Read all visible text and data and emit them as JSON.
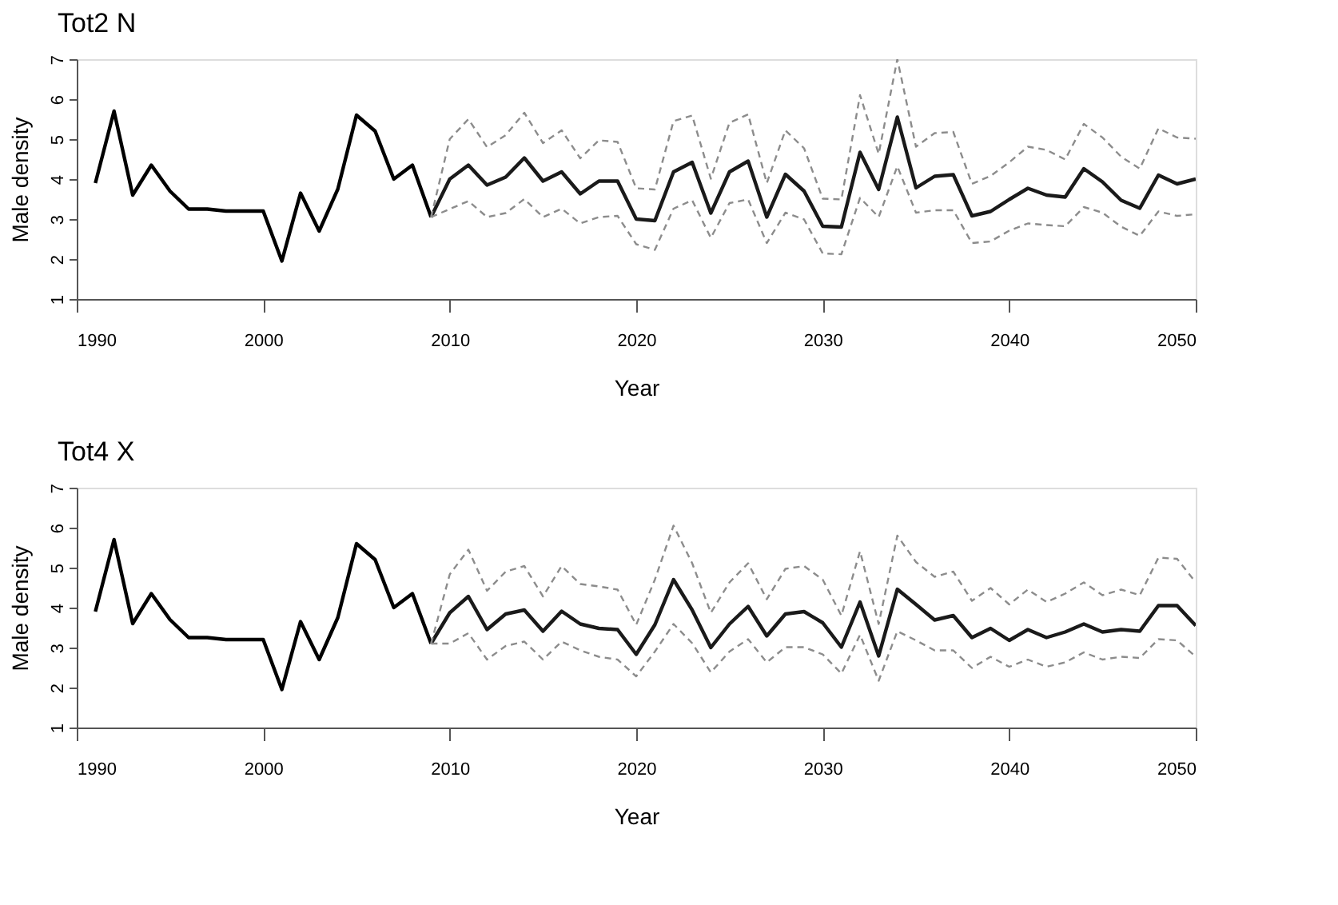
{
  "chart_data": [
    {
      "type": "line",
      "title": "Tot2 N",
      "xlabel": "Year",
      "ylabel": "Male density",
      "xlim": [
        1990,
        2050
      ],
      "xticks": [
        1990,
        2000,
        2010,
        2020,
        2030,
        2040,
        2050
      ],
      "ylim": [
        1,
        7
      ],
      "yticks": [
        1,
        2,
        3,
        4,
        5,
        6,
        7
      ],
      "grid": false,
      "marker": "none",
      "series": [
        {
          "color": "#000000",
          "line_style": "solid",
          "x": [
            1991,
            1992,
            1993,
            1994,
            1995,
            1996,
            1997,
            1998,
            1999,
            2000,
            2001,
            2002,
            2003,
            2004,
            2005,
            2006,
            2007,
            2008,
            2009
          ],
          "values": [
            3.9,
            5.7,
            3.6,
            4.35,
            3.7,
            3.25,
            3.25,
            3.2,
            3.2,
            3.2,
            1.95,
            3.65,
            2.7,
            3.75,
            5.6,
            5.2,
            4.0,
            4.35,
            3.05
          ]
        },
        {
          "color": "#1a1a1a",
          "line_style": "solid",
          "x": [
            2009,
            2010,
            2011,
            2012,
            2013,
            2014,
            2015,
            2016,
            2017,
            2018,
            2019,
            2020,
            2021,
            2022,
            2023,
            2024,
            2025,
            2026,
            2027,
            2028,
            2029,
            2030,
            2031,
            2032,
            2033,
            2034,
            2035,
            2036,
            2037,
            2038,
            2039,
            2040,
            2041,
            2042,
            2043,
            2044,
            2045,
            2046,
            2047,
            2048,
            2049,
            2050
          ],
          "values": [
            3.05,
            4.0,
            4.35,
            3.85,
            4.05,
            4.53,
            3.95,
            4.18,
            3.63,
            3.95,
            3.95,
            3.0,
            2.96,
            4.18,
            4.42,
            3.15,
            4.18,
            4.45,
            3.05,
            4.12,
            3.7,
            2.82,
            2.8,
            4.67,
            3.74,
            5.55,
            3.78,
            4.07,
            4.11,
            3.08,
            3.19,
            3.49,
            3.77,
            3.6,
            3.55,
            4.26,
            3.93,
            3.47,
            3.27,
            4.1,
            3.88,
            4.0
          ]
        },
        {
          "color": "#8c8c8c",
          "line_style": "dashed",
          "x": [
            2009,
            2010,
            2011,
            2012,
            2013,
            2014,
            2015,
            2016,
            2017,
            2018,
            2019,
            2020,
            2021,
            2022,
            2023,
            2024,
            2025,
            2026,
            2027,
            2028,
            2029,
            2030,
            2031,
            2032,
            2033,
            2034,
            2035,
            2036,
            2037,
            2038,
            2039,
            2040,
            2041,
            2042,
            2043,
            2044,
            2045,
            2046,
            2047,
            2048,
            2049,
            2050
          ],
          "values": [
            3.05,
            5.0,
            5.5,
            4.8,
            5.1,
            5.66,
            4.9,
            5.22,
            4.52,
            4.97,
            4.93,
            3.77,
            3.74,
            5.45,
            5.59,
            4.01,
            5.41,
            5.62,
            3.9,
            5.22,
            4.77,
            3.51,
            3.49,
            6.1,
            4.63,
            7.0,
            4.81,
            5.15,
            5.18,
            3.88,
            4.08,
            4.42,
            4.81,
            4.73,
            4.49,
            5.38,
            5.04,
            4.56,
            4.26,
            5.27,
            5.04,
            5.01
          ]
        },
        {
          "color": "#8c8c8c",
          "line_style": "dashed",
          "x": [
            2009,
            2010,
            2011,
            2012,
            2013,
            2014,
            2015,
            2016,
            2017,
            2018,
            2019,
            2020,
            2021,
            2022,
            2023,
            2024,
            2025,
            2026,
            2027,
            2028,
            2029,
            2030,
            2031,
            2032,
            2033,
            2034,
            2035,
            2036,
            2037,
            2038,
            2039,
            2040,
            2041,
            2042,
            2043,
            2044,
            2045,
            2046,
            2047,
            2048,
            2049,
            2050
          ],
          "values": [
            3.05,
            3.25,
            3.45,
            3.05,
            3.15,
            3.5,
            3.05,
            3.26,
            2.89,
            3.05,
            3.08,
            2.37,
            2.23,
            3.26,
            3.47,
            2.53,
            3.4,
            3.49,
            2.4,
            3.16,
            2.99,
            2.14,
            2.12,
            3.53,
            3.05,
            4.32,
            3.16,
            3.22,
            3.22,
            2.4,
            2.44,
            2.71,
            2.89,
            2.85,
            2.82,
            3.3,
            3.16,
            2.81,
            2.58,
            3.19,
            3.08,
            3.12
          ]
        }
      ]
    },
    {
      "type": "line",
      "title": "Tot4 X",
      "xlabel": "Year",
      "ylabel": "Male density",
      "xlim": [
        1990,
        2050
      ],
      "xticks": [
        1990,
        2000,
        2010,
        2020,
        2030,
        2040,
        2050
      ],
      "ylim": [
        1,
        7
      ],
      "yticks": [
        1,
        2,
        3,
        4,
        5,
        6,
        7
      ],
      "grid": false,
      "marker": "none",
      "series": [
        {
          "color": "#000000",
          "line_style": "solid",
          "x": [
            1991,
            1992,
            1993,
            1994,
            1995,
            1996,
            1997,
            1998,
            1999,
            2000,
            2001,
            2002,
            2003,
            2004,
            2005,
            2006,
            2007,
            2008,
            2009
          ],
          "values": [
            3.9,
            5.7,
            3.6,
            4.35,
            3.7,
            3.25,
            3.25,
            3.2,
            3.2,
            3.2,
            1.95,
            3.65,
            2.7,
            3.75,
            5.6,
            5.2,
            4.0,
            4.35,
            3.1
          ]
        },
        {
          "color": "#1a1a1a",
          "line_style": "solid",
          "x": [
            2009,
            2010,
            2011,
            2012,
            2013,
            2014,
            2015,
            2016,
            2017,
            2018,
            2019,
            2020,
            2021,
            2022,
            2023,
            2024,
            2025,
            2026,
            2027,
            2028,
            2029,
            2030,
            2031,
            2032,
            2033,
            2034,
            2035,
            2036,
            2037,
            2038,
            2039,
            2040,
            2041,
            2042,
            2043,
            2044,
            2045,
            2046,
            2047,
            2048,
            2049,
            2050
          ],
          "values": [
            3.1,
            3.87,
            4.28,
            3.45,
            3.84,
            3.94,
            3.41,
            3.91,
            3.59,
            3.48,
            3.45,
            2.83,
            3.57,
            4.7,
            3.94,
            3.0,
            3.59,
            4.03,
            3.29,
            3.84,
            3.9,
            3.62,
            3.01,
            4.14,
            2.79,
            4.46,
            4.08,
            3.69,
            3.8,
            3.25,
            3.48,
            3.18,
            3.45,
            3.25,
            3.39,
            3.59,
            3.39,
            3.45,
            3.41,
            4.05,
            4.05,
            3.55
          ]
        },
        {
          "color": "#8c8c8c",
          "line_style": "dashed",
          "x": [
            2009,
            2010,
            2011,
            2012,
            2013,
            2014,
            2015,
            2016,
            2017,
            2018,
            2019,
            2020,
            2021,
            2022,
            2023,
            2024,
            2025,
            2026,
            2027,
            2028,
            2029,
            2030,
            2031,
            2032,
            2033,
            2034,
            2035,
            2036,
            2037,
            2038,
            2039,
            2040,
            2041,
            2042,
            2043,
            2044,
            2045,
            2046,
            2047,
            2048,
            2049,
            2050
          ],
          "values": [
            3.1,
            4.83,
            5.45,
            4.42,
            4.9,
            5.04,
            4.28,
            5.04,
            4.59,
            4.53,
            4.45,
            3.57,
            4.7,
            6.05,
            5.11,
            3.87,
            4.63,
            5.11,
            4.21,
            4.97,
            5.04,
            4.7,
            3.8,
            5.41,
            3.59,
            5.8,
            5.14,
            4.77,
            4.9,
            4.17,
            4.49,
            4.08,
            4.45,
            4.14,
            4.35,
            4.63,
            4.31,
            4.45,
            4.31,
            5.25,
            5.22,
            4.63
          ]
        },
        {
          "color": "#8c8c8c",
          "line_style": "dashed",
          "x": [
            2009,
            2010,
            2011,
            2012,
            2013,
            2014,
            2015,
            2016,
            2017,
            2018,
            2019,
            2020,
            2021,
            2022,
            2023,
            2024,
            2025,
            2026,
            2027,
            2028,
            2029,
            2030,
            2031,
            2032,
            2033,
            2034,
            2035,
            2036,
            2037,
            2038,
            2039,
            2040,
            2041,
            2042,
            2043,
            2044,
            2045,
            2046,
            2047,
            2048,
            2049,
            2050
          ],
          "values": [
            3.1,
            3.1,
            3.36,
            2.7,
            3.04,
            3.15,
            2.7,
            3.15,
            2.93,
            2.77,
            2.7,
            2.28,
            2.9,
            3.59,
            3.11,
            2.38,
            2.9,
            3.21,
            2.63,
            3.01,
            3.01,
            2.83,
            2.35,
            3.32,
            2.17,
            3.41,
            3.18,
            2.93,
            2.93,
            2.49,
            2.77,
            2.52,
            2.7,
            2.52,
            2.63,
            2.88,
            2.7,
            2.77,
            2.74,
            3.21,
            3.18,
            2.77
          ]
        }
      ]
    }
  ]
}
